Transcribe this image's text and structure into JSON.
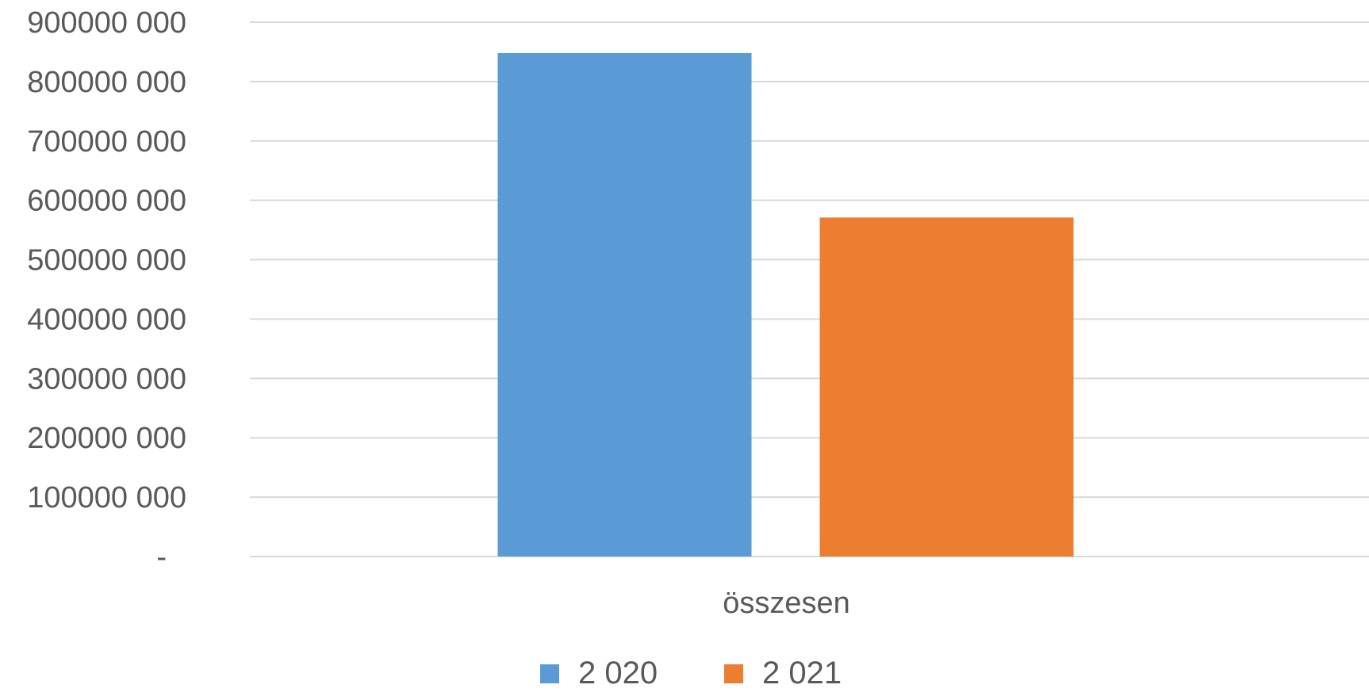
{
  "chart_data": {
    "type": "bar",
    "categories": [
      "összesen"
    ],
    "series": [
      {
        "name": "2 020",
        "values": [
          848000000
        ],
        "color": "#5B9BD5"
      },
      {
        "name": "2 021",
        "values": [
          571000000
        ],
        "color": "#ED7D31"
      }
    ],
    "ylim": [
      0,
      900000000
    ],
    "yticks": [
      0,
      100000000,
      200000000,
      300000000,
      400000000,
      500000000,
      600000000,
      700000000,
      800000000,
      900000000
    ],
    "ytick_labels": [
      "-",
      "100000 000",
      "200000 000",
      "300000 000",
      "400000 000",
      "500000 000",
      "600000 000",
      "700000 000",
      "800000 000",
      "900000 000"
    ],
    "grid": true,
    "legend_position": "bottom",
    "title": "",
    "xlabel": "",
    "ylabel": ""
  }
}
